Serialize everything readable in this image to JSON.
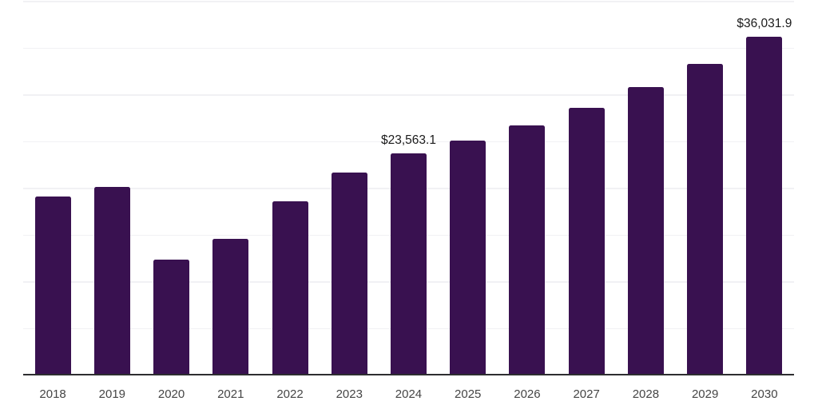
{
  "chart_data": {
    "type": "bar",
    "title": "",
    "xlabel": "",
    "ylabel": "",
    "categories": [
      "2018",
      "2019",
      "2020",
      "2021",
      "2022",
      "2023",
      "2024",
      "2025",
      "2026",
      "2027",
      "2028",
      "2029",
      "2030"
    ],
    "values": [
      19000,
      20030,
      12250,
      14450,
      18450,
      21550,
      23563.1,
      25000,
      26550,
      28500,
      30700,
      33200,
      36031.9
    ],
    "labeled_points": [
      {
        "index": 6,
        "category": "2024",
        "label": "$23,563.1"
      },
      {
        "index": 12,
        "category": "2030",
        "label": "$36,031.9"
      }
    ],
    "ylim": [
      0,
      40000
    ],
    "gridline_step": 5000,
    "grid": "horizontal-only",
    "legend": "none",
    "colors": {
      "bar": "#391150",
      "axis_line": "#2e2e30",
      "gridline": "#f1f1f4",
      "tick_label": "#454545",
      "value_label": "#1b1b1b",
      "background": "#ffffff"
    }
  }
}
